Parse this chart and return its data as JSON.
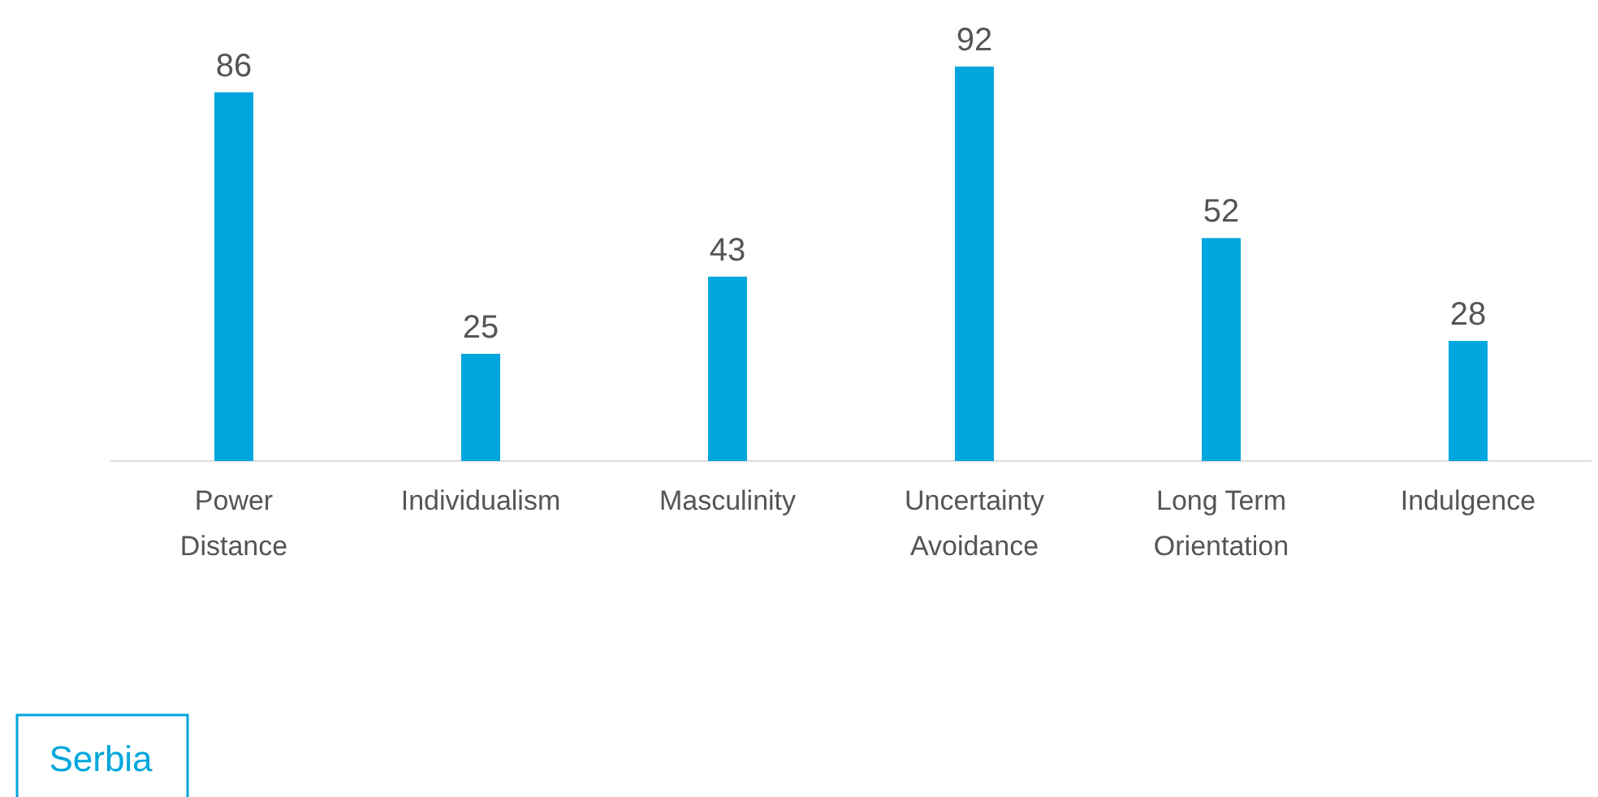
{
  "chart_data": {
    "type": "bar",
    "categories": [
      "Power Distance",
      "Individualism",
      "Masculinity",
      "Uncertainty Avoidance",
      "Long Term Orientation",
      "Indulgence"
    ],
    "series": [
      {
        "name": "Serbia",
        "color": "#00a6dd",
        "values": [
          86,
          25,
          43,
          92,
          52,
          28
        ]
      }
    ],
    "data_labels": true,
    "legend": "bottom left"
  }
}
